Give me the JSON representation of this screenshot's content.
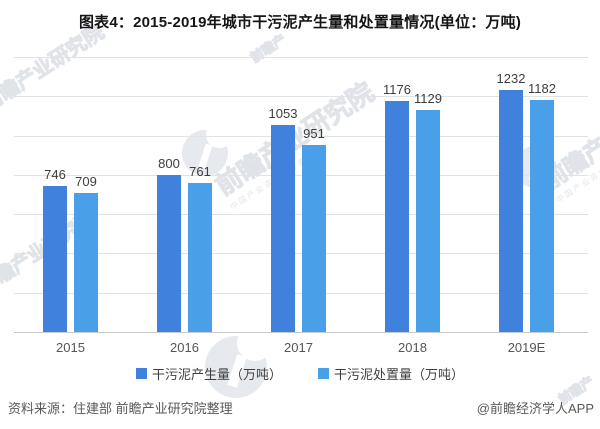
{
  "title": "图表4：2015-2019年城市干污泥产生量和处置量情况(单位：万吨)",
  "chart_data": {
    "type": "bar",
    "title": "图表4：2015-2019年城市干污泥产生量和处置量情况",
    "unit": "万吨",
    "categories": [
      "2015",
      "2016",
      "2017",
      "2018",
      "2019E"
    ],
    "series": [
      {
        "name": "干污泥产生量（万吨）",
        "color": "#3f81dd",
        "values": [
          746,
          800,
          1053,
          1176,
          1232
        ]
      },
      {
        "name": "干污泥处置量（万吨）",
        "color": "#49a0e9",
        "values": [
          709,
          761,
          951,
          1129,
          1182
        ]
      }
    ],
    "ylim": [
      0,
      1400
    ],
    "grid_step": 200,
    "grid": "horizontal-only",
    "y_axis_labels": "hidden",
    "legend_position": "bottom",
    "data_labels": "above-bars"
  },
  "footer": {
    "source": "资料来源：住建部 前瞻产业研究院整理",
    "credit": "@前瞻经济学人APP"
  },
  "watermark": {
    "brand": "前瞻产业研究院",
    "brand_short": "前瞻产",
    "tagline": "中国产业咨询领导者"
  },
  "colors": {
    "production_bar": "#3f81dd",
    "disposal_bar": "#49a0e9",
    "gridline": "#dfe3e6",
    "axis_line": "#c5c9cc",
    "title_text": "#151515",
    "secondary_text": "#595959"
  }
}
